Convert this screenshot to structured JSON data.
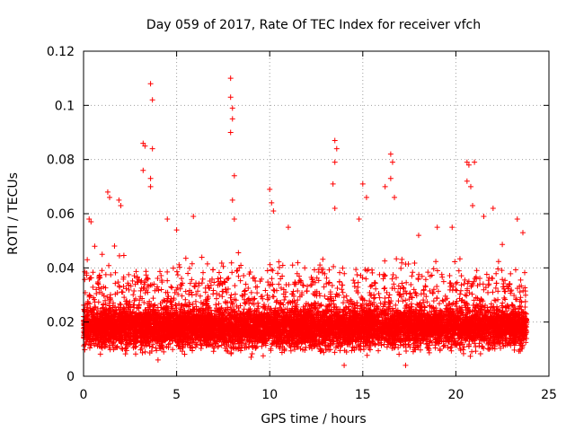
{
  "chart_data": {
    "type": "scatter",
    "title": "Day 059 of 2017, Rate Of TEC Index for receiver vfch",
    "xlabel": "GPS time / hours",
    "ylabel": "ROTI / TECUs",
    "xlim": [
      0,
      25
    ],
    "ylim": [
      0,
      0.12
    ],
    "xticks": [
      0,
      5,
      10,
      15,
      20,
      25
    ],
    "yticks": [
      0,
      0.02,
      0.04,
      0.06,
      0.08,
      0.1,
      0.12
    ],
    "xtick_labels": [
      "0",
      "5",
      "10",
      "15",
      "20",
      "25"
    ],
    "ytick_labels": [
      "0",
      "0.02",
      "0.04",
      "0.06",
      "0.08",
      "0.1",
      "0.12"
    ],
    "grid": true,
    "marker": "+",
    "marker_color": "#ff0000",
    "data_x_range": [
      0,
      23.8
    ],
    "series": [
      {
        "name": "ROTI",
        "color": "#ff0000",
        "note": "dense band of points mostly between 0.01 and 0.03 TECU/s, with spikes",
        "points": [
          [
            0.2,
            0.043
          ],
          [
            0.3,
            0.058
          ],
          [
            0.4,
            0.057
          ],
          [
            0.6,
            0.048
          ],
          [
            1.0,
            0.045
          ],
          [
            1.3,
            0.068
          ],
          [
            1.4,
            0.066
          ],
          [
            1.9,
            0.065
          ],
          [
            2.0,
            0.063
          ],
          [
            3.2,
            0.086
          ],
          [
            3.3,
            0.085
          ],
          [
            3.6,
            0.108
          ],
          [
            3.7,
            0.102
          ],
          [
            3.7,
            0.084
          ],
          [
            3.6,
            0.073
          ],
          [
            3.6,
            0.07
          ],
          [
            3.2,
            0.076
          ],
          [
            4.5,
            0.058
          ],
          [
            5.0,
            0.054
          ],
          [
            5.9,
            0.059
          ],
          [
            7.9,
            0.11
          ],
          [
            7.9,
            0.103
          ],
          [
            8.0,
            0.099
          ],
          [
            8.0,
            0.095
          ],
          [
            7.9,
            0.09
          ],
          [
            8.1,
            0.074
          ],
          [
            8.0,
            0.065
          ],
          [
            8.1,
            0.058
          ],
          [
            10.0,
            0.069
          ],
          [
            10.1,
            0.064
          ],
          [
            10.2,
            0.061
          ],
          [
            11.0,
            0.055
          ],
          [
            13.5,
            0.087
          ],
          [
            13.6,
            0.084
          ],
          [
            13.5,
            0.079
          ],
          [
            13.4,
            0.071
          ],
          [
            13.5,
            0.062
          ],
          [
            14.8,
            0.058
          ],
          [
            15.0,
            0.071
          ],
          [
            15.2,
            0.066
          ],
          [
            16.2,
            0.07
          ],
          [
            16.5,
            0.082
          ],
          [
            16.6,
            0.079
          ],
          [
            16.5,
            0.073
          ],
          [
            16.7,
            0.066
          ],
          [
            18.0,
            0.052
          ],
          [
            19.0,
            0.055
          ],
          [
            19.8,
            0.055
          ],
          [
            20.6,
            0.079
          ],
          [
            20.7,
            0.078
          ],
          [
            21.0,
            0.079
          ],
          [
            20.6,
            0.072
          ],
          [
            20.8,
            0.07
          ],
          [
            20.9,
            0.063
          ],
          [
            21.5,
            0.059
          ],
          [
            22.0,
            0.062
          ],
          [
            23.3,
            0.058
          ],
          [
            23.6,
            0.053
          ],
          [
            17.3,
            0.004
          ],
          [
            14.0,
            0.004
          ],
          [
            4.0,
            0.006
          ],
          [
            9.0,
            0.007
          ]
        ]
      }
    ]
  }
}
